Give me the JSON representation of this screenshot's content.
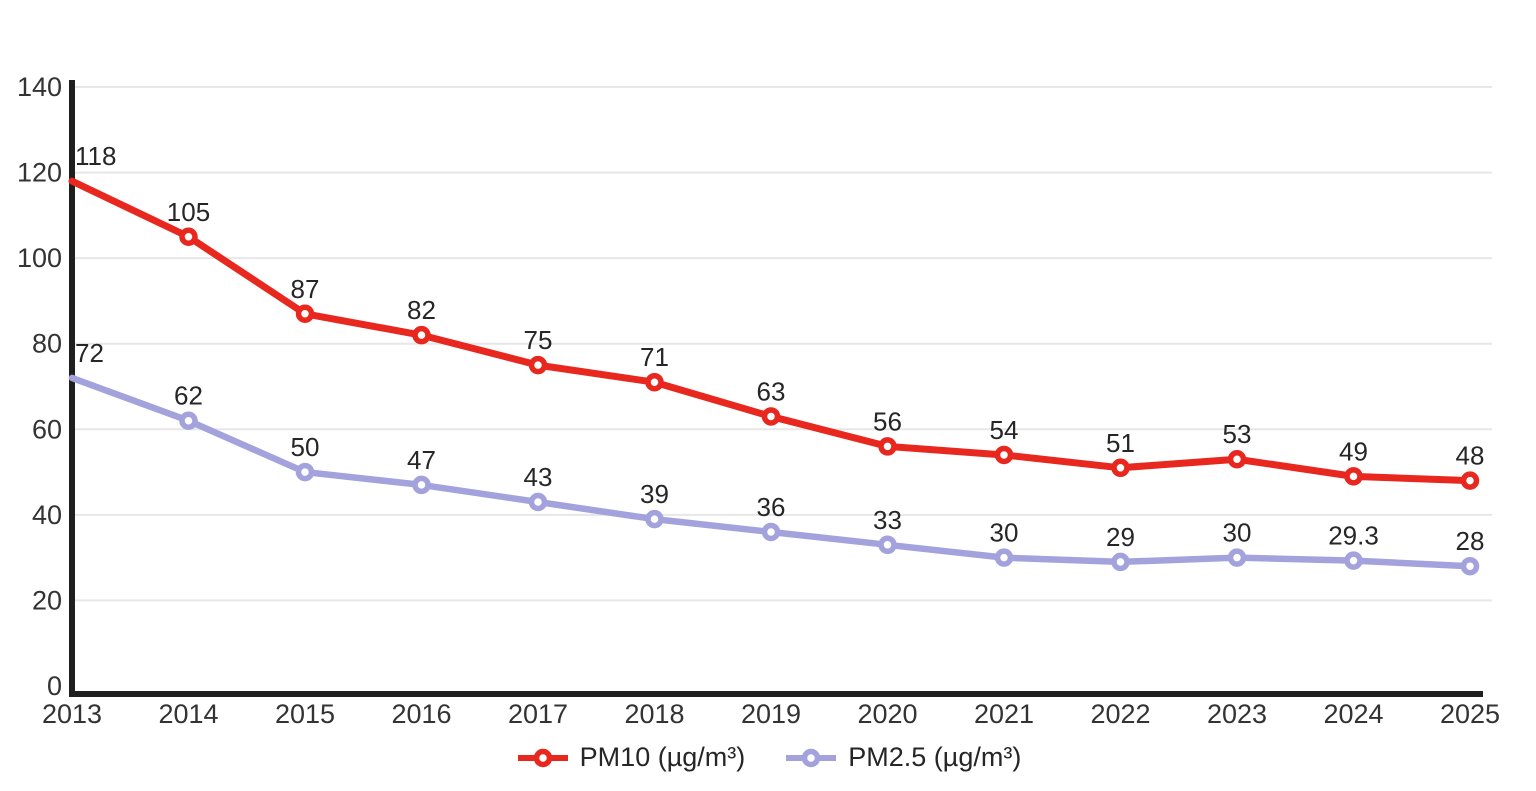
{
  "chart_data": {
    "type": "line",
    "x": [
      "2013",
      "2014",
      "2015",
      "2016",
      "2017",
      "2018",
      "2019",
      "2020",
      "2021",
      "2022",
      "2023",
      "2024",
      "2025"
    ],
    "series": [
      {
        "name": "PM10 (µg/m³)",
        "color": "#e8281e",
        "values": [
          118,
          105,
          87,
          82,
          75,
          71,
          63,
          56,
          54,
          51,
          53,
          49,
          48
        ],
        "labels": [
          "118",
          "105",
          "87",
          "82",
          "75",
          "71",
          "63",
          "56",
          "54",
          "51",
          "53",
          "49",
          "48"
        ]
      },
      {
        "name": "PM2.5 (µg/m³)",
        "color": "#a3a2dc",
        "values": [
          72,
          62,
          50,
          47,
          43,
          39,
          36,
          33,
          30,
          29,
          30,
          29.3,
          28
        ],
        "labels": [
          "72",
          "62",
          "50",
          "47",
          "43",
          "39",
          "36",
          "33",
          "30",
          "29",
          "30",
          "29.3",
          "28"
        ]
      }
    ],
    "title": "",
    "xlabel": "",
    "ylabel": "",
    "ylim": [
      0,
      140
    ],
    "yticks": [
      0,
      20,
      40,
      60,
      80,
      100,
      120,
      140
    ],
    "grid": true,
    "legend_position": "bottom",
    "colors": {
      "axis": "#1f1f1f",
      "gridline": "#e7e7e7",
      "data_label": "#262626",
      "tick_label": "#333333",
      "marker_fill": "#ffffff"
    }
  }
}
